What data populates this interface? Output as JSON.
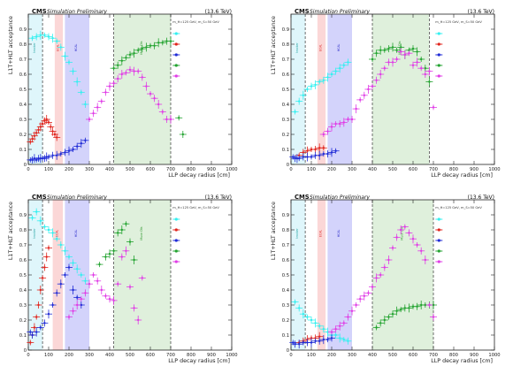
{
  "colors": {
    "cyan": "#33f0f0",
    "red": "#e0241c",
    "blue": "#1f2bd6",
    "green": "#23a330",
    "magenta": "#e03ce6",
    "band_cyan": "#dff6fb",
    "band_red": "#fbd7d7",
    "band_blue": "#d3d3fb",
    "band_green": "#dff0dc",
    "axis": "#222222"
  },
  "chart_data": [
    {
      "type": "scatter",
      "title": "CMS Simulation Preliminary",
      "cms_label": "CMS",
      "prelim_label": "Simulation Preliminary",
      "energy_label": "(13.6 TeV)",
      "xlabel": "LLP decay radius [cm]",
      "ylabel": "L1T+HLT acceptance",
      "xlim": [
        0,
        1000
      ],
      "ylim": [
        0,
        1.0
      ],
      "xticks": [
        0,
        100,
        200,
        300,
        400,
        500,
        600,
        700,
        800,
        900,
        1000
      ],
      "yticks": [
        0,
        0.1,
        0.2,
        0.3,
        0.4,
        0.5,
        0.6,
        0.7,
        0.8,
        0.9
      ],
      "series": [
        {
          "color": "cyan",
          "x": [
            20,
            40,
            60,
            80,
            100,
            120,
            140,
            160,
            180,
            200,
            220,
            240,
            260,
            280
          ],
          "y": [
            0.84,
            0.85,
            0.86,
            0.86,
            0.85,
            0.84,
            0.82,
            0.78,
            0.72,
            0.68,
            0.62,
            0.55,
            0.48,
            0.4
          ]
        },
        {
          "color": "red",
          "x": [
            10,
            20,
            30,
            40,
            50,
            60,
            70,
            80,
            90,
            100,
            110,
            120,
            130,
            140
          ],
          "y": [
            0.15,
            0.17,
            0.19,
            0.21,
            0.23,
            0.25,
            0.27,
            0.29,
            0.3,
            0.28,
            0.25,
            0.22,
            0.2,
            0.18
          ]
        },
        {
          "color": "blue",
          "x": [
            10,
            20,
            30,
            40,
            50,
            60,
            70,
            80,
            90,
            100,
            120,
            140,
            160,
            180,
            200,
            220,
            240,
            260,
            280
          ],
          "y": [
            0.03,
            0.03,
            0.04,
            0.03,
            0.04,
            0.04,
            0.04,
            0.04,
            0.05,
            0.05,
            0.06,
            0.06,
            0.07,
            0.08,
            0.09,
            0.1,
            0.12,
            0.14,
            0.16
          ]
        },
        {
          "color": "green",
          "x": [
            420,
            440,
            460,
            480,
            500,
            520,
            540,
            560,
            580,
            600,
            620,
            640,
            660,
            680,
            700,
            740,
            760
          ],
          "y": [
            0.64,
            0.66,
            0.69,
            0.71,
            0.73,
            0.74,
            0.76,
            0.77,
            0.78,
            0.79,
            0.79,
            0.81,
            0.81,
            0.82,
            0.82,
            0.31,
            0.2
          ]
        },
        {
          "color": "magenta",
          "x": [
            300,
            320,
            340,
            360,
            380,
            400,
            420,
            440,
            460,
            480,
            500,
            520,
            540,
            560,
            580,
            600,
            620,
            640,
            660,
            680,
            700
          ],
          "y": [
            0.3,
            0.34,
            0.38,
            0.42,
            0.48,
            0.52,
            0.54,
            0.57,
            0.6,
            0.61,
            0.63,
            0.62,
            0.62,
            0.58,
            0.52,
            0.47,
            0.44,
            0.4,
            0.35,
            0.3,
            0.3
          ]
        }
      ],
      "bands": [
        {
          "color": "band_cyan",
          "from": 0,
          "to": 70
        },
        {
          "color": "band_red",
          "from": 130,
          "to": 170
        },
        {
          "color": "band_blue",
          "from": 180,
          "to": 300
        },
        {
          "color": "band_green",
          "from": 420,
          "to": 700
        }
      ],
      "band_labels": [
        "tracker",
        "ECAL",
        "HCAL",
        "Muon Dts"
      ],
      "legend_title": "m_H=125 GeV, m_S=50 GeV",
      "legend_entries": [
        "",
        "",
        "",
        "",
        ""
      ]
    },
    {
      "type": "scatter",
      "title": "CMS Simulation Preliminary",
      "cms_label": "CMS",
      "prelim_label": "Simulation Preliminary",
      "energy_label": "(13.6 TeV)",
      "xlabel": "LLP decay radius [cm]",
      "ylabel": "L1T+HLT acceptance",
      "xlim": [
        0,
        1000
      ],
      "ylim": [
        0,
        1.0
      ],
      "xticks": [
        0,
        100,
        200,
        300,
        400,
        500,
        600,
        700,
        800,
        900,
        1000
      ],
      "yticks": [
        0,
        0.1,
        0.2,
        0.3,
        0.4,
        0.5,
        0.6,
        0.7,
        0.8,
        0.9
      ],
      "series": [
        {
          "color": "cyan",
          "x": [
            20,
            40,
            60,
            80,
            100,
            120,
            140,
            160,
            180,
            200,
            220,
            240,
            260,
            280
          ],
          "y": [
            0.35,
            0.42,
            0.46,
            0.5,
            0.52,
            0.53,
            0.55,
            0.56,
            0.58,
            0.6,
            0.62,
            0.64,
            0.66,
            0.68
          ]
        },
        {
          "color": "red",
          "x": [
            40,
            60,
            80,
            100,
            120,
            140,
            160
          ],
          "y": [
            0.06,
            0.08,
            0.09,
            0.1,
            0.1,
            0.11,
            0.11
          ]
        },
        {
          "color": "blue",
          "x": [
            10,
            20,
            30,
            40,
            60,
            80,
            100,
            120,
            140,
            160,
            180,
            200,
            220
          ],
          "y": [
            0.05,
            0.04,
            0.04,
            0.04,
            0.05,
            0.05,
            0.05,
            0.06,
            0.06,
            0.07,
            0.07,
            0.08,
            0.09
          ]
        },
        {
          "color": "green",
          "x": [
            400,
            420,
            440,
            460,
            480,
            500,
            520,
            540,
            560,
            580,
            600,
            620,
            640,
            660,
            680
          ],
          "y": [
            0.7,
            0.74,
            0.76,
            0.76,
            0.77,
            0.78,
            0.76,
            0.78,
            0.73,
            0.76,
            0.77,
            0.75,
            0.7,
            0.64,
            0.55
          ]
        },
        {
          "color": "magenta",
          "x": [
            160,
            180,
            200,
            220,
            240,
            260,
            280,
            300,
            320,
            340,
            360,
            380,
            400,
            420,
            440,
            460,
            480,
            500,
            520,
            540,
            560,
            580,
            600,
            620,
            640,
            660,
            680,
            700
          ],
          "y": [
            0.2,
            0.22,
            0.25,
            0.27,
            0.27,
            0.28,
            0.3,
            0.3,
            0.37,
            0.43,
            0.46,
            0.5,
            0.52,
            0.56,
            0.6,
            0.64,
            0.68,
            0.68,
            0.7,
            0.75,
            0.73,
            0.74,
            0.66,
            0.68,
            0.64,
            0.6,
            0.62,
            0.38
          ]
        }
      ],
      "bands": [
        {
          "color": "band_cyan",
          "from": 0,
          "to": 70
        },
        {
          "color": "band_red",
          "from": 130,
          "to": 170
        },
        {
          "color": "band_blue",
          "from": 180,
          "to": 300
        },
        {
          "color": "band_green",
          "from": 400,
          "to": 680
        }
      ],
      "band_labels": [
        "tracker",
        "ECAL",
        "HCAL",
        "Muon Dts"
      ],
      "legend_title": "m_H=125 GeV, m_S=50 GeV",
      "legend_entries": [
        "",
        "",
        "",
        "",
        ""
      ]
    },
    {
      "type": "scatter",
      "title": "CMS Simulation Preliminary",
      "cms_label": "CMS",
      "prelim_label": "Simulation Preliminary",
      "energy_label": "(13.6 TeV)",
      "xlabel": "LLP decay radius [cm]",
      "ylabel": "L1T+HLT acceptance",
      "xlim": [
        0,
        1000
      ],
      "ylim": [
        0,
        1.0
      ],
      "xticks": [
        0,
        100,
        200,
        300,
        400,
        500,
        600,
        700,
        800,
        900,
        1000
      ],
      "yticks": [
        0,
        0.1,
        0.2,
        0.3,
        0.4,
        0.5,
        0.6,
        0.7,
        0.8,
        0.9
      ],
      "series": [
        {
          "color": "cyan",
          "x": [
            20,
            40,
            60,
            80,
            100,
            120,
            140,
            160,
            180,
            200,
            220,
            240,
            260,
            280
          ],
          "y": [
            0.88,
            0.92,
            0.86,
            0.82,
            0.8,
            0.78,
            0.74,
            0.7,
            0.66,
            0.62,
            0.58,
            0.54,
            0.5,
            0.46
          ]
        },
        {
          "color": "red",
          "x": [
            10,
            20,
            30,
            40,
            50,
            60,
            70,
            80,
            90,
            100
          ],
          "y": [
            0.05,
            0.1,
            0.15,
            0.22,
            0.3,
            0.4,
            0.48,
            0.55,
            0.62,
            0.68
          ]
        },
        {
          "color": "blue",
          "x": [
            10,
            20,
            40,
            60,
            80,
            100,
            120,
            140,
            160,
            180,
            200,
            220,
            240,
            260
          ],
          "y": [
            0.12,
            0.1,
            0.12,
            0.15,
            0.18,
            0.24,
            0.3,
            0.38,
            0.44,
            0.5,
            0.55,
            0.4,
            0.35,
            0.3
          ]
        },
        {
          "color": "green",
          "x": [
            350,
            380,
            400,
            420,
            440,
            460,
            480,
            500,
            520
          ],
          "y": [
            0.57,
            0.62,
            0.64,
            0.66,
            0.78,
            0.8,
            0.84,
            0.72,
            0.6
          ]
        },
        {
          "color": "magenta",
          "x": [
            200,
            220,
            240,
            260,
            280,
            300,
            320,
            340,
            360,
            380,
            400,
            420,
            440,
            460,
            480,
            500,
            520,
            540,
            560
          ],
          "y": [
            0.22,
            0.26,
            0.3,
            0.34,
            0.38,
            0.44,
            0.5,
            0.46,
            0.4,
            0.36,
            0.34,
            0.33,
            0.44,
            0.62,
            0.66,
            0.42,
            0.28,
            0.2,
            0.48
          ]
        }
      ],
      "bands": [
        {
          "color": "band_cyan",
          "from": 0,
          "to": 70
        },
        {
          "color": "band_red",
          "from": 120,
          "to": 170
        },
        {
          "color": "band_blue",
          "from": 180,
          "to": 300
        },
        {
          "color": "band_green",
          "from": 420,
          "to": 700
        }
      ],
      "band_labels": [
        "tracker",
        "ECAL",
        "HCAL",
        "Muon Dts"
      ],
      "legend_title": "m_H=125 GeV, m_S=50 GeV",
      "legend_entries": [
        "",
        "",
        "",
        "",
        ""
      ]
    },
    {
      "type": "scatter",
      "title": "CMS Simulation Preliminary",
      "cms_label": "CMS",
      "prelim_label": "Simulation Preliminary",
      "energy_label": "(13.6 TeV)",
      "xlabel": "LLP decay radius [cm]",
      "ylabel": "L1T+HLT acceptance",
      "xlim": [
        0,
        1000
      ],
      "ylim": [
        0,
        1.0
      ],
      "xticks": [
        0,
        100,
        200,
        300,
        400,
        500,
        600,
        700,
        800,
        900,
        1000
      ],
      "yticks": [
        0,
        0.1,
        0.2,
        0.3,
        0.4,
        0.5,
        0.6,
        0.7,
        0.8,
        0.9
      ],
      "series": [
        {
          "color": "cyan",
          "x": [
            20,
            40,
            60,
            80,
            100,
            120,
            140,
            160,
            180,
            200,
            220,
            240,
            260,
            280
          ],
          "y": [
            0.32,
            0.28,
            0.24,
            0.22,
            0.2,
            0.18,
            0.16,
            0.14,
            0.12,
            0.1,
            0.1,
            0.08,
            0.07,
            0.06
          ]
        },
        {
          "color": "red",
          "x": [
            40,
            60,
            80,
            100,
            120,
            140
          ],
          "y": [
            0.05,
            0.06,
            0.07,
            0.08,
            0.08,
            0.09
          ]
        },
        {
          "color": "blue",
          "x": [
            10,
            20,
            40,
            60,
            80,
            100,
            120,
            140,
            160,
            180,
            200
          ],
          "y": [
            0.05,
            0.04,
            0.04,
            0.05,
            0.05,
            0.05,
            0.06,
            0.06,
            0.07,
            0.07,
            0.08
          ]
        },
        {
          "color": "green",
          "x": [
            420,
            440,
            460,
            480,
            500,
            520,
            540,
            560,
            580,
            600,
            620,
            640,
            660,
            680,
            700
          ],
          "y": [
            0.15,
            0.18,
            0.2,
            0.22,
            0.24,
            0.26,
            0.27,
            0.28,
            0.28,
            0.29,
            0.29,
            0.3,
            0.3,
            0.3,
            0.3
          ]
        },
        {
          "color": "magenta",
          "x": [
            200,
            220,
            240,
            260,
            280,
            300,
            320,
            340,
            360,
            380,
            400,
            420,
            440,
            460,
            480,
            500,
            520,
            540,
            560,
            580,
            600,
            620,
            640,
            660,
            680,
            700
          ],
          "y": [
            0.12,
            0.14,
            0.16,
            0.18,
            0.22,
            0.26,
            0.3,
            0.34,
            0.36,
            0.38,
            0.42,
            0.48,
            0.5,
            0.55,
            0.6,
            0.68,
            0.75,
            0.8,
            0.82,
            0.78,
            0.74,
            0.7,
            0.66,
            0.6,
            0.3,
            0.22
          ]
        }
      ],
      "bands": [
        {
          "color": "band_cyan",
          "from": 0,
          "to": 70
        },
        {
          "color": "band_red",
          "from": 130,
          "to": 170
        },
        {
          "color": "band_blue",
          "from": 180,
          "to": 300
        },
        {
          "color": "band_green",
          "from": 400,
          "to": 700
        }
      ],
      "band_labels": [
        "tracker",
        "ECAL",
        "HCAL",
        "Muon Dts"
      ],
      "legend_title": "m_H=125 GeV, m_S=50 GeV",
      "legend_entries": [
        "",
        "",
        "",
        "",
        ""
      ]
    }
  ]
}
